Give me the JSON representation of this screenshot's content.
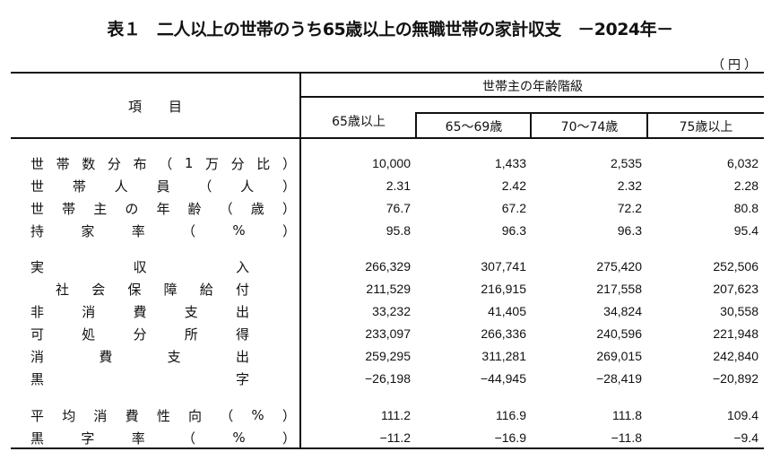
{
  "title": "表１　二人以上の世帯のうち65歳以上の無職世帯の家計収支　－2024年－",
  "unit": "（円）",
  "header": {
    "item_label": "項　　目",
    "group_label": "世帯主の年齢階級",
    "columns": [
      "65歳以上",
      "65～69歳",
      "70～74歳",
      "75歳以上"
    ]
  },
  "rows": [
    {
      "label": [
        "世",
        "帯",
        "数",
        "分",
        "布",
        "（",
        "1",
        "万",
        "分",
        "比",
        "）"
      ],
      "values": [
        "10,000",
        "1,433",
        "2,535",
        "6,032"
      ]
    },
    {
      "label": [
        "世",
        "帯",
        "人",
        "員",
        "（",
        "人",
        "）"
      ],
      "values": [
        "2.31",
        "2.42",
        "2.32",
        "2.28"
      ]
    },
    {
      "label": [
        "世",
        "帯",
        "主",
        "の",
        "年",
        "齢",
        "（",
        "歳",
        "）"
      ],
      "values": [
        "76.7",
        "67.2",
        "72.2",
        "80.8"
      ]
    },
    {
      "label": [
        "持",
        "家",
        "率",
        "（",
        "%",
        "）"
      ],
      "values": [
        "95.8",
        "96.3",
        "96.3",
        "95.4"
      ]
    },
    {
      "label": [
        "実",
        "収",
        "入"
      ],
      "values": [
        "266,329",
        "307,741",
        "275,420",
        "252,506"
      ]
    },
    {
      "label": [
        "社",
        "会",
        "保",
        "障",
        "給",
        "付"
      ],
      "values": [
        "211,529",
        "216,915",
        "217,558",
        "207,623"
      ]
    },
    {
      "label": [
        "非",
        "消",
        "費",
        "支",
        "出"
      ],
      "values": [
        "33,232",
        "41,405",
        "34,824",
        "30,558"
      ]
    },
    {
      "label": [
        "可",
        "処",
        "分",
        "所",
        "得"
      ],
      "values": [
        "233,097",
        "266,336",
        "240,596",
        "221,948"
      ]
    },
    {
      "label": [
        "消",
        "費",
        "支",
        "出"
      ],
      "values": [
        "259,295",
        "311,281",
        "269,015",
        "242,840"
      ]
    },
    {
      "label": [
        "黒",
        "字"
      ],
      "values": [
        "−26,198",
        "−44,945",
        "−28,419",
        "−20,892"
      ]
    },
    {
      "label": [
        "平",
        "均",
        "消",
        "費",
        "性",
        "向",
        "（",
        "%",
        "）"
      ],
      "values": [
        "111.2",
        "116.9",
        "111.8",
        "109.4"
      ]
    },
    {
      "label": [
        "黒",
        "字",
        "率",
        "（",
        "%",
        "）"
      ],
      "values": [
        "−11.2",
        "−16.9",
        "−11.8",
        "−9.4"
      ]
    }
  ]
}
